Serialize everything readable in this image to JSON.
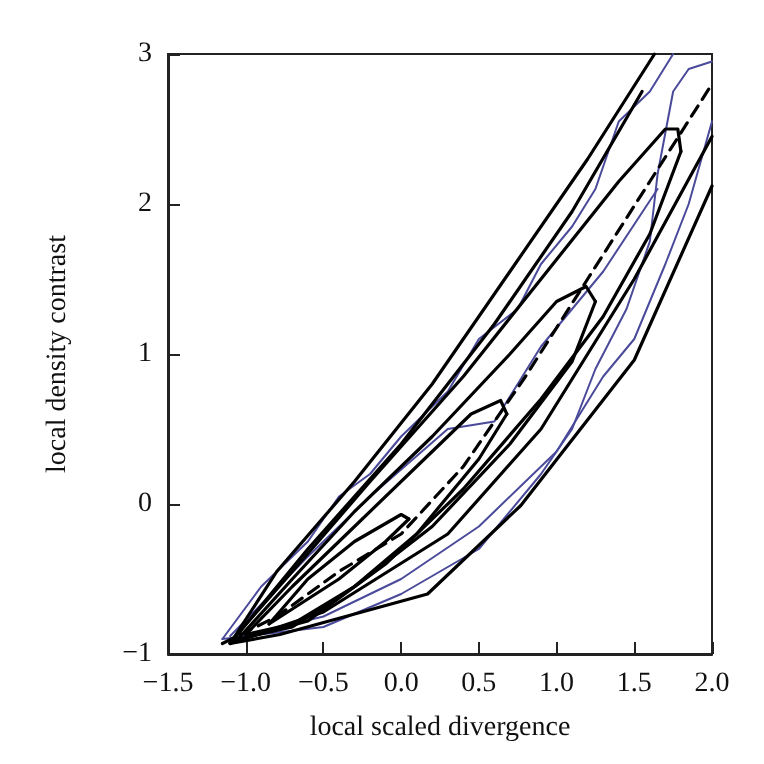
{
  "chart_data": {
    "type": "line",
    "xlabel": "local scaled divergence",
    "ylabel": "local density contrast",
    "xlim": [
      -1.5,
      2.0
    ],
    "ylim": [
      -1,
      3
    ],
    "xticks": [
      {
        "value": -1.5,
        "label": "−1.5"
      },
      {
        "value": -1.0,
        "label": "−1.0"
      },
      {
        "value": -0.5,
        "label": "−0.5"
      },
      {
        "value": 0,
        "label": "0.0"
      },
      {
        "value": 0.5,
        "label": "0.5"
      },
      {
        "value": 1.0,
        "label": "1.0"
      },
      {
        "value": 1.5,
        "label": "1.5"
      },
      {
        "value": 2.0,
        "label": "2.0"
      }
    ],
    "yticks": [
      {
        "value": -1,
        "label": "−1"
      },
      0,
      1,
      2,
      3
    ],
    "grid": false,
    "marker": "none",
    "series": [
      {
        "color": "#4a4a9a",
        "x": [
          -1.15,
          -0.9,
          -0.6,
          -0.4,
          -0.2,
          0,
          0.3,
          0.5,
          0.75,
          0.9,
          1.1,
          1.25,
          1.4,
          1.6,
          1.75
        ],
        "values": [
          -0.9,
          -0.55,
          -0.25,
          0.05,
          0.2,
          0.45,
          0.75,
          1.1,
          1.3,
          1.6,
          1.85,
          2.1,
          2.55,
          2.75,
          3.0
        ]
      },
      {
        "color": "#4a4a9a",
        "x": [
          -1.15,
          -0.5,
          0,
          0.5,
          0.9,
          1.1,
          1.25,
          1.45,
          1.6,
          1.65,
          1.75,
          1.85,
          2.0
        ],
        "values": [
          -0.9,
          -0.82,
          -0.6,
          -0.3,
          0.2,
          0.5,
          0.9,
          1.3,
          1.75,
          2.2,
          2.75,
          2.9,
          2.95
        ]
      },
      {
        "color": "#4a4a9a",
        "x": [
          -1.1,
          -0.5,
          0,
          0.5,
          1.0,
          1.3,
          1.5,
          1.7,
          1.85,
          2.0
        ],
        "values": [
          -0.9,
          -0.75,
          -0.5,
          -0.15,
          0.35,
          0.85,
          1.1,
          1.6,
          2.0,
          2.55
        ]
      },
      {
        "color": "#4a4a9a",
        "x": [
          -1.1,
          -0.6,
          -0.2,
          0.3,
          0.6,
          0.9,
          1.3,
          1.65
        ],
        "values": [
          -0.88,
          -0.35,
          0.05,
          0.5,
          0.55,
          1.05,
          1.55,
          2.1
        ]
      },
      {
        "color": "#000000",
        "line_style": "dashed",
        "x": [
          -1.15,
          -0.8,
          -0.4,
          0,
          0.4,
          0.8,
          1.2,
          1.6,
          2.0
        ],
        "values": [
          -0.93,
          -0.75,
          -0.45,
          -0.2,
          0.25,
          0.85,
          1.5,
          2.15,
          2.8
        ]
      },
      {
        "color": "#000000",
        "x": [
          -0.85,
          -0.6,
          -0.3,
          0,
          0.05
        ],
        "values": [
          -0.8,
          -0.5,
          -0.25,
          -0.07,
          -0.1
        ]
      },
      {
        "color": "#000000",
        "x": [
          -0.85,
          -0.7,
          -0.4,
          -0.1,
          0.05
        ],
        "values": [
          -0.8,
          -0.7,
          -0.5,
          -0.25,
          -0.1
        ]
      },
      {
        "color": "#000000",
        "x": [
          -1.0,
          -0.7,
          -0.3,
          0.1,
          0.45,
          0.64,
          0.68
        ],
        "values": [
          -0.87,
          -0.55,
          -0.15,
          0.25,
          0.6,
          0.69,
          0.6
        ]
      },
      {
        "color": "#000000",
        "x": [
          -1.0,
          -0.7,
          -0.3,
          0.1,
          0.5,
          0.68
        ],
        "values": [
          -0.87,
          -0.8,
          -0.55,
          -0.2,
          0.3,
          0.6
        ]
      },
      {
        "color": "#000000",
        "x": [
          -1.05,
          -0.7,
          -0.3,
          0.2,
          0.7,
          1.0,
          1.19,
          1.25
        ],
        "values": [
          -0.9,
          -0.5,
          -0.05,
          0.45,
          1.0,
          1.35,
          1.45,
          1.35
        ]
      },
      {
        "color": "#000000",
        "x": [
          -1.05,
          -0.7,
          -0.3,
          0.2,
          0.7,
          1.1,
          1.25
        ],
        "values": [
          -0.9,
          -0.82,
          -0.55,
          -0.15,
          0.4,
          0.95,
          1.35
        ]
      },
      {
        "color": "#000000",
        "x": [
          -1.1,
          -0.7,
          -0.2,
          0.4,
          0.9,
          1.4,
          1.7,
          1.78,
          1.8
        ],
        "values": [
          -0.92,
          -0.45,
          0.15,
          0.85,
          1.5,
          2.15,
          2.5,
          2.5,
          2.35
        ]
      },
      {
        "color": "#000000",
        "x": [
          -1.1,
          -0.6,
          -0.1,
          0.4,
          0.9,
          1.3,
          1.6,
          1.8
        ],
        "values": [
          -0.92,
          -0.78,
          -0.4,
          0.1,
          0.7,
          1.25,
          1.8,
          2.35
        ]
      },
      {
        "color": "#000000",
        "x": [
          -1.1,
          -0.8,
          -0.3,
          0.2,
          0.7,
          1.2,
          1.63
        ],
        "values": [
          -0.93,
          -0.45,
          0.15,
          0.8,
          1.55,
          2.3,
          3.0
        ]
      },
      {
        "color": "#000000",
        "x": [
          -1.1,
          -0.6,
          0,
          0.6,
          1.1,
          1.55
        ],
        "values": [
          -0.93,
          -0.3,
          0.4,
          1.2,
          1.95,
          2.75
        ]
      },
      {
        "color": "#000000",
        "x": [
          -1.1,
          -0.5,
          0.3,
          0.9,
          1.5,
          2.0
        ],
        "values": [
          -0.93,
          -0.72,
          -0.2,
          0.5,
          1.5,
          2.45
        ]
      },
      {
        "color": "#000000",
        "x": [
          -1.1,
          -0.78,
          0.17,
          0.77,
          1.5,
          2.0
        ],
        "values": [
          -0.93,
          -0.87,
          -0.6,
          -0.01,
          0.96,
          2.12
        ]
      }
    ]
  }
}
